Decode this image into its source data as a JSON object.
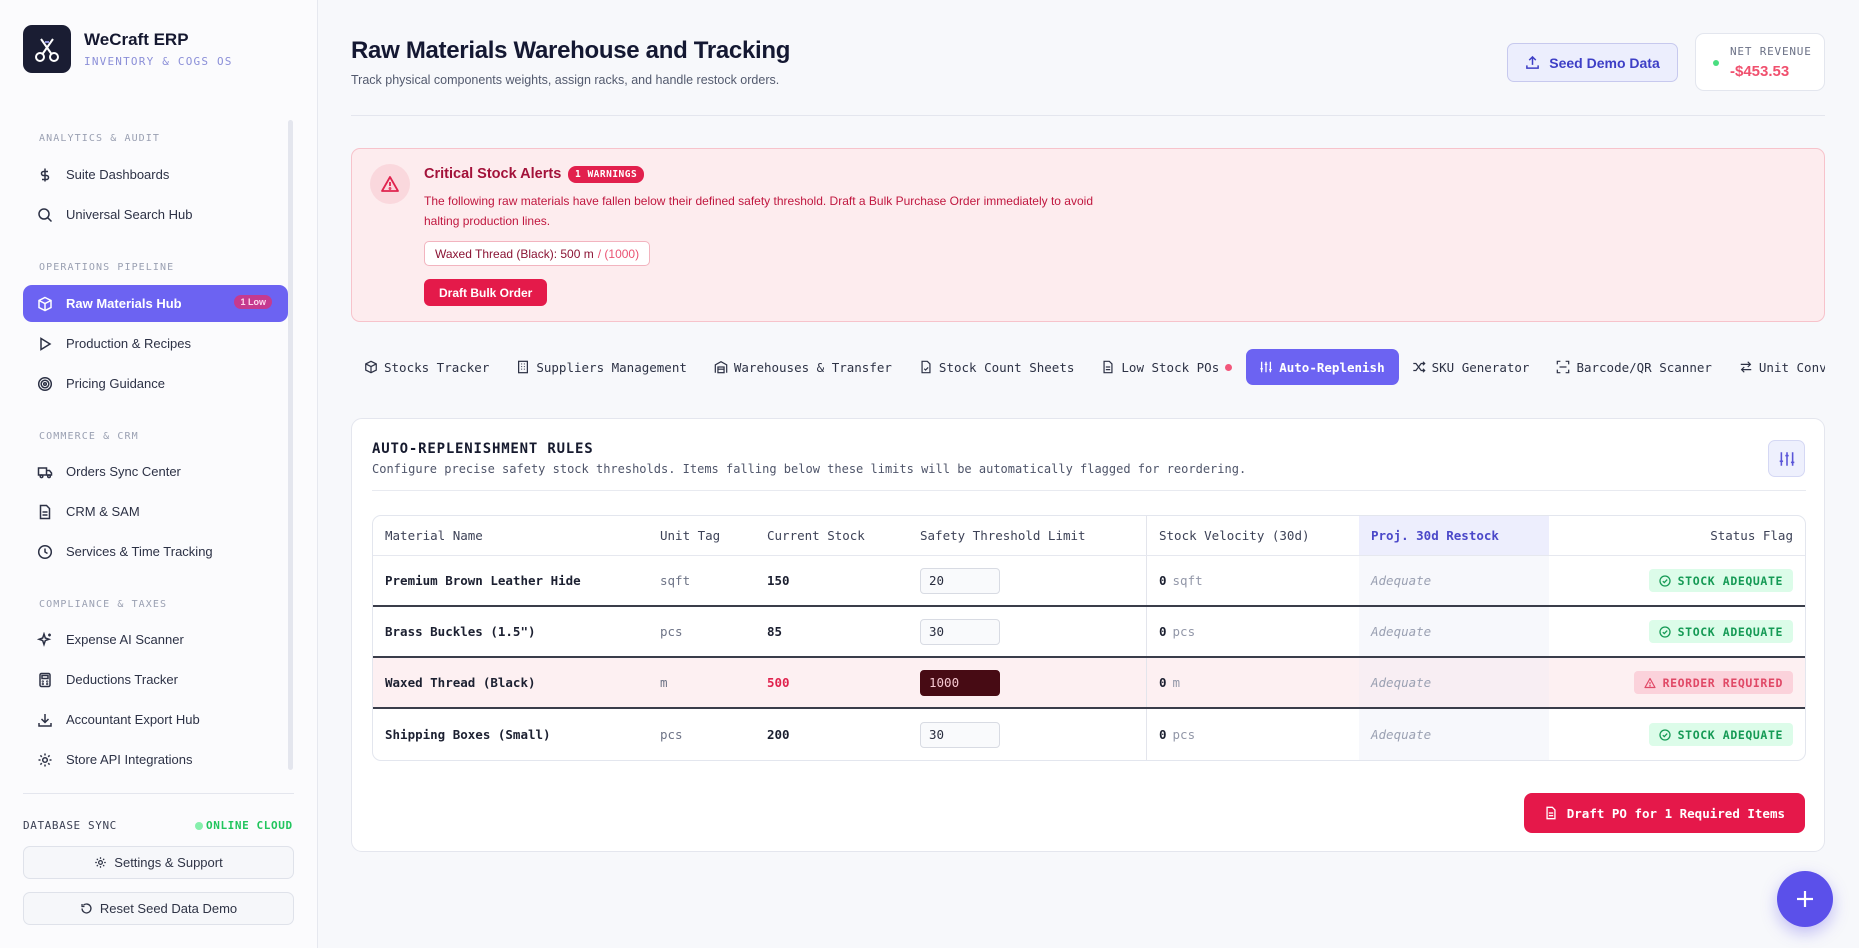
{
  "brand": {
    "name": "WeCraft ERP",
    "subtitle": "INVENTORY & COGS OS"
  },
  "sidebar": {
    "sections": [
      {
        "title": "ANALYTICS & AUDIT"
      },
      {
        "title": "OPERATIONS PIPELINE"
      },
      {
        "title": "COMMERCE & CRM"
      },
      {
        "title": "COMPLIANCE & TAXES"
      }
    ],
    "items": [
      {
        "label": "Suite Dashboards",
        "icon": "dollar-icon"
      },
      {
        "label": "Universal Search Hub",
        "icon": "search-icon"
      },
      {
        "label": "Raw Materials Hub",
        "icon": "package-icon",
        "badge": "1 Low",
        "active": true
      },
      {
        "label": "Production & Recipes",
        "icon": "play-icon"
      },
      {
        "label": "Pricing Guidance",
        "icon": "target-icon"
      },
      {
        "label": "Orders Sync Center",
        "icon": "truck-icon"
      },
      {
        "label": "CRM & SAM",
        "icon": "document-icon"
      },
      {
        "label": "Services & Time Tracking",
        "icon": "clock-icon"
      },
      {
        "label": "Expense AI Scanner",
        "icon": "sparkle-icon"
      },
      {
        "label": "Deductions Tracker",
        "icon": "calculator-icon"
      },
      {
        "label": "Accountant Export Hub",
        "icon": "download-icon"
      },
      {
        "label": "Store API Integrations",
        "icon": "gear-icon"
      }
    ],
    "footer": {
      "db_label": "DATABASE SYNC",
      "db_status": "ONLINE CLOUD",
      "settings_label": "Settings & Support",
      "reset_label": "Reset Seed Data Demo"
    }
  },
  "header": {
    "title": "Raw Materials Warehouse and Tracking",
    "subtitle": "Track physical components weights, assign racks, and handle restock orders.",
    "seed_label": "Seed Demo Data",
    "revenue_label": "NET REVENUE",
    "revenue_value": "-$453.53"
  },
  "alert": {
    "title": "Critical Stock Alerts",
    "badge": "1 WARNINGS",
    "text": "The following raw materials have fallen below their defined safety threshold. Draft a Bulk Purchase Order immediately to avoid halting production lines.",
    "chip_item": "Waxed Thread (Black): 500 m",
    "chip_limit": "/ (1000)",
    "button": "Draft Bulk Order"
  },
  "tabs": [
    {
      "label": "Stocks Tracker",
      "icon": "box-icon"
    },
    {
      "label": "Suppliers Management",
      "icon": "building-icon"
    },
    {
      "label": "Warehouses & Transfer",
      "icon": "warehouse-icon"
    },
    {
      "label": "Stock Count Sheets",
      "icon": "file-icon"
    },
    {
      "label": "Low Stock POs",
      "icon": "receipt-icon",
      "dot": true
    },
    {
      "label": "Auto-Replenish",
      "icon": "sliders-icon",
      "active": true
    },
    {
      "label": "SKU Generator",
      "icon": "shuffle-icon"
    },
    {
      "label": "Barcode/QR Scanner",
      "icon": "scan-icon"
    },
    {
      "label": "Unit Converter",
      "icon": "arrows-icon"
    }
  ],
  "rules": {
    "title": "AUTO-REPLENISHMENT RULES",
    "subtitle": "Configure precise safety stock thresholds. Items falling below these limits will be automatically flagged for reordering.",
    "columns": [
      "Material Name",
      "Unit Tag",
      "Current Stock",
      "Safety Threshold Limit",
      "Stock Velocity (30d)",
      "Proj. 30d Restock",
      "Status Flag"
    ],
    "rows": [
      {
        "name": "Premium Brown Leather Hide",
        "unit": "sqft",
        "stock": "150",
        "threshold": "20",
        "velocity": "0",
        "velocity_unit": "sqft",
        "projection": "Adequate",
        "status": "STOCK ADEQUATE",
        "low": false
      },
      {
        "name": "Brass Buckles (1.5\")",
        "unit": "pcs",
        "stock": "85",
        "threshold": "30",
        "velocity": "0",
        "velocity_unit": "pcs",
        "projection": "Adequate",
        "status": "STOCK ADEQUATE",
        "low": false
      },
      {
        "name": "Waxed Thread (Black)",
        "unit": "m",
        "stock": "500",
        "threshold": "1000",
        "velocity": "0",
        "velocity_unit": "m",
        "projection": "Adequate",
        "status": "REORDER REQUIRED",
        "low": true
      },
      {
        "name": "Shipping Boxes (Small)",
        "unit": "pcs",
        "stock": "200",
        "threshold": "30",
        "velocity": "0",
        "velocity_unit": "pcs",
        "projection": "Adequate",
        "status": "STOCK ADEQUATE",
        "low": false
      }
    ],
    "draft_button": "Draft PO for 1 Required Items"
  },
  "colors": {
    "accent": "#6c63f2",
    "danger": "#e41a4a",
    "success": "#159a55"
  }
}
